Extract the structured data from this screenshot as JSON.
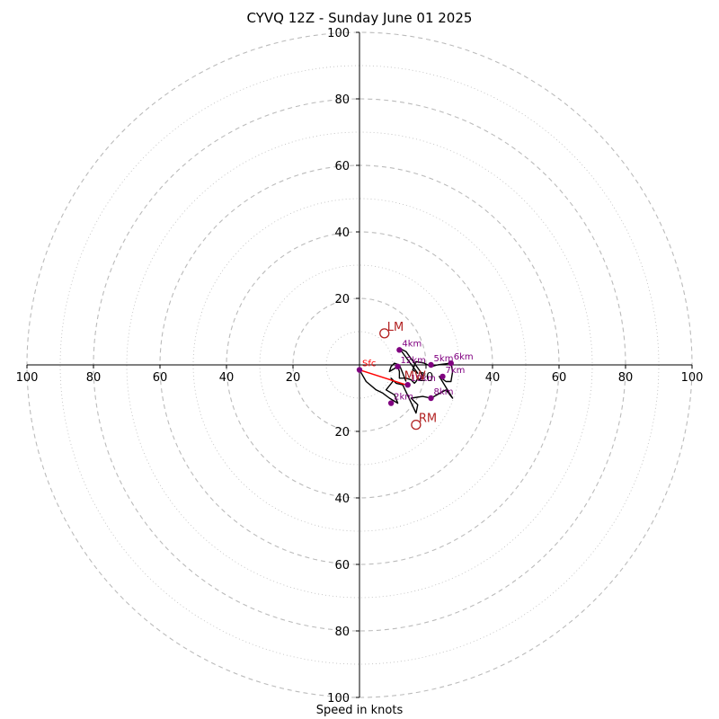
{
  "chart_data": {
    "type": "hodograph",
    "title": "CYVQ 12Z - Sunday June 01 2025",
    "xlabel": "Speed in knots",
    "ring_max": 100,
    "major_ring_step": 20,
    "minor_ring_step": 10,
    "tick_labels_vertical": [
      "100",
      "80",
      "60",
      "40",
      "20",
      "20",
      "40",
      "60",
      "80",
      "100"
    ],
    "tick_labels_horizontal": [
      "100",
      "80",
      "60",
      "40",
      "20",
      "20",
      "40",
      "60",
      "80",
      "100"
    ],
    "grid": true,
    "hodograph_trace": [
      [
        0,
        -1.5
      ],
      [
        2,
        -5
      ],
      [
        5,
        -7.5
      ],
      [
        7,
        -8.5
      ],
      [
        9,
        -10
      ],
      [
        11.5,
        -11.5
      ],
      [
        10.5,
        -9
      ],
      [
        8,
        -7.5
      ],
      [
        10,
        -5
      ],
      [
        9.5,
        -4
      ],
      [
        11,
        -5.5
      ],
      [
        13,
        -6
      ],
      [
        17,
        -14.5
      ],
      [
        17.5,
        -12
      ],
      [
        15.5,
        -10
      ],
      [
        19,
        -9.5
      ],
      [
        21.5,
        -10
      ],
      [
        26,
        -7.5
      ],
      [
        28,
        -10
      ],
      [
        24,
        -3.5
      ],
      [
        26,
        -5
      ],
      [
        27.5,
        -5
      ],
      [
        28,
        -2
      ],
      [
        27.5,
        0.5
      ],
      [
        23.5,
        0
      ],
      [
        21.5,
        -0.5
      ],
      [
        19.5,
        0.5
      ],
      [
        17,
        1
      ],
      [
        16,
        -1.5
      ],
      [
        17.5,
        -2.5
      ],
      [
        12,
        5
      ],
      [
        14,
        4
      ],
      [
        19,
        -3
      ],
      [
        18,
        -4.5
      ],
      [
        17.5,
        -4
      ],
      [
        17,
        -5
      ],
      [
        16.5,
        -5.5
      ],
      [
        15.5,
        -4.5
      ],
      [
        14,
        -4
      ],
      [
        12,
        -4
      ],
      [
        12,
        -2
      ],
      [
        11.5,
        -0.5
      ],
      [
        9,
        -2
      ],
      [
        9.5,
        -0.5
      ],
      [
        10.5,
        0.5
      ],
      [
        12,
        0
      ],
      [
        13,
        -2.5
      ],
      [
        14,
        -5
      ]
    ],
    "height_markers": [
      {
        "label": "Sfc",
        "u": 0,
        "v": -1.5
      },
      {
        "label": "2km",
        "u": 9.5,
        "v": -11.5
      },
      {
        "label": "4km",
        "u": 12,
        "v": 4.5
      },
      {
        "label": "5km",
        "u": 21.5,
        "v": 0
      },
      {
        "label": "6km",
        "u": 27.5,
        "v": 0.5
      },
      {
        "label": "7km",
        "u": 25,
        "v": -3.5
      },
      {
        "label": "8km",
        "u": 21.5,
        "v": -10
      },
      {
        "label": "10km",
        "u": 14.5,
        "v": -6
      },
      {
        "label": "12km",
        "u": 11.5,
        "v": -0.5
      }
    ],
    "mean_wind_label": "MW",
    "mean_wind": {
      "u": 14,
      "v": -5
    },
    "motion_points": [
      {
        "label": "LM",
        "u": 7.5,
        "v": 9.5
      },
      {
        "label": "RM",
        "u": 17,
        "v": -18
      }
    ],
    "shear_vector": {
      "from": {
        "u": 0,
        "v": -1.5
      },
      "to": {
        "u": 14,
        "v": -6
      }
    },
    "colors": {
      "trace": "#000000",
      "height_marker": "#800080",
      "storm_motion": "#b22222",
      "shear_vector": "#ff0000",
      "grid": "#bbbbbb",
      "axis": "#000000"
    }
  }
}
